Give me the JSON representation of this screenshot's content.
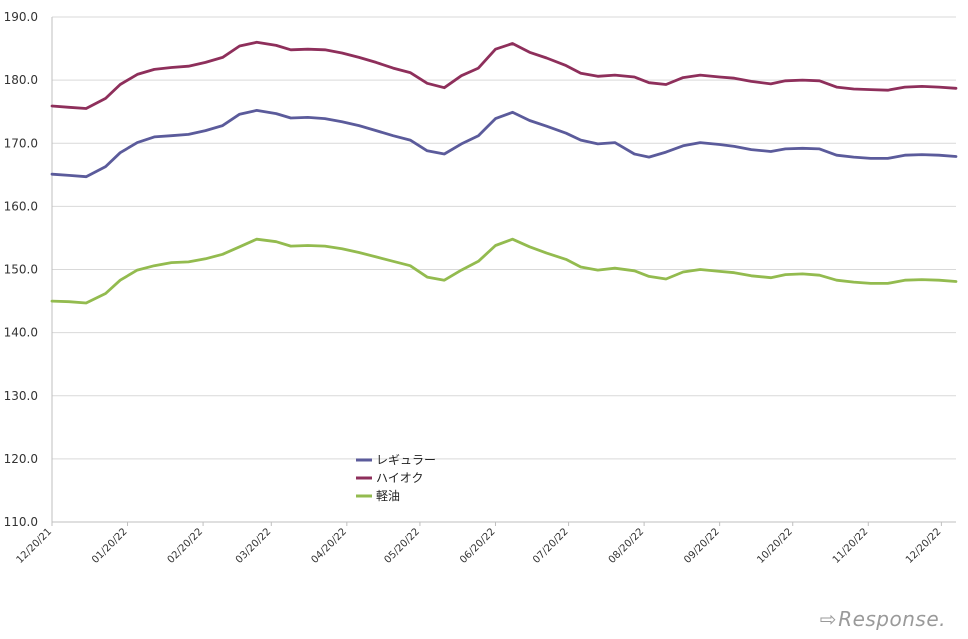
{
  "chart_data": {
    "type": "line",
    "title": "",
    "xlabel": "",
    "ylabel": "",
    "ylim": [
      110,
      190
    ],
    "y_ticks": [
      "110.0",
      "120.0",
      "130.0",
      "140.0",
      "150.0",
      "160.0",
      "170.0",
      "180.0",
      "190.0"
    ],
    "x_tick_labels": [
      "12/20/21",
      "01/20/22",
      "02/20/22",
      "03/20/22",
      "04/20/22",
      "05/20/22",
      "06/20/22",
      "07/20/22",
      "08/20/22",
      "09/20/22",
      "10/20/22",
      "11/20/22",
      "12/20/22"
    ],
    "grid": "horizontal",
    "legend_position": "bottom-center",
    "x": [
      "2021-12-20",
      "2021-12-27",
      "2022-01-03",
      "2022-01-11",
      "2022-01-17",
      "2022-01-24",
      "2022-01-31",
      "2022-02-07",
      "2022-02-14",
      "2022-02-21",
      "2022-02-28",
      "2022-03-07",
      "2022-03-14",
      "2022-03-22",
      "2022-03-28",
      "2022-04-04",
      "2022-04-11",
      "2022-04-18",
      "2022-04-25",
      "2022-05-02",
      "2022-05-09",
      "2022-05-16",
      "2022-05-23",
      "2022-05-30",
      "2022-06-06",
      "2022-06-13",
      "2022-06-20",
      "2022-06-27",
      "2022-07-04",
      "2022-07-11",
      "2022-07-19",
      "2022-07-25",
      "2022-08-01",
      "2022-08-08",
      "2022-08-16",
      "2022-08-22",
      "2022-08-29",
      "2022-09-05",
      "2022-09-12",
      "2022-09-20",
      "2022-09-26",
      "2022-10-03",
      "2022-10-11",
      "2022-10-17",
      "2022-10-24",
      "2022-10-31",
      "2022-11-07",
      "2022-11-14",
      "2022-11-21",
      "2022-11-28",
      "2022-12-05",
      "2022-12-12",
      "2022-12-19",
      "2022-12-26"
    ],
    "series": [
      {
        "name": "レギュラー",
        "color": "#5b5b9b",
        "values": [
          165.1,
          164.9,
          164.7,
          166.3,
          168.5,
          170.1,
          171.0,
          171.2,
          171.4,
          172.0,
          172.8,
          174.6,
          175.2,
          174.7,
          174.0,
          174.1,
          173.9,
          173.4,
          172.8,
          172.0,
          171.2,
          170.5,
          168.8,
          168.3,
          169.9,
          171.2,
          173.9,
          174.9,
          173.6,
          172.7,
          171.6,
          170.5,
          169.9,
          170.1,
          168.3,
          167.8,
          168.6,
          169.6,
          170.1,
          169.8,
          169.5,
          169.0,
          168.7,
          169.1,
          169.2,
          169.1,
          168.1,
          167.8,
          167.6,
          167.6,
          168.1,
          168.2,
          168.1,
          167.9
        ]
      },
      {
        "name": "ハイオク",
        "color": "#8e2f5b",
        "values": [
          175.9,
          175.7,
          175.5,
          177.1,
          179.3,
          180.9,
          181.7,
          182.0,
          182.2,
          182.8,
          183.6,
          185.4,
          186.0,
          185.5,
          184.8,
          184.9,
          184.8,
          184.3,
          183.6,
          182.8,
          181.9,
          181.2,
          179.5,
          178.8,
          180.7,
          181.9,
          184.9,
          185.8,
          184.4,
          183.5,
          182.3,
          181.1,
          180.6,
          180.8,
          180.5,
          179.6,
          179.3,
          180.4,
          180.8,
          180.5,
          180.3,
          179.8,
          179.4,
          179.9,
          180.0,
          179.9,
          178.9,
          178.6,
          178.5,
          178.4,
          178.9,
          179.0,
          178.9,
          178.7
        ]
      },
      {
        "name": "軽油",
        "color": "#93bb4f",
        "values": [
          145.0,
          144.9,
          144.7,
          146.2,
          148.3,
          149.9,
          150.6,
          151.1,
          151.2,
          151.7,
          152.4,
          153.6,
          154.8,
          154.4,
          153.7,
          153.8,
          153.7,
          153.3,
          152.7,
          152.0,
          151.3,
          150.6,
          148.8,
          148.3,
          149.9,
          151.3,
          153.8,
          154.8,
          153.6,
          152.6,
          151.6,
          150.4,
          149.9,
          150.2,
          149.8,
          148.9,
          148.5,
          149.6,
          150.0,
          149.7,
          149.5,
          149.0,
          148.7,
          149.2,
          149.3,
          149.1,
          148.3,
          148.0,
          147.8,
          147.8,
          148.3,
          148.4,
          148.3,
          148.1
        ]
      }
    ]
  },
  "legend": [
    {
      "label": "レギュラー",
      "color": "#5b5b9b"
    },
    {
      "label": "ハイオク",
      "color": "#8e2f5b"
    },
    {
      "label": "軽油",
      "color": "#93bb4f"
    }
  ],
  "watermark": {
    "text": "Response."
  }
}
